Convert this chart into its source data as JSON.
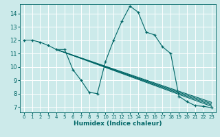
{
  "xlabel": "Humidex (Indice chaleur)",
  "bg_color": "#cceaea",
  "grid_color": "#ffffff",
  "line_color": "#006666",
  "xlim": [
    -0.5,
    23.5
  ],
  "ylim": [
    6.6,
    14.7
  ],
  "yticks": [
    7,
    8,
    9,
    10,
    11,
    12,
    13,
    14
  ],
  "xticks": [
    0,
    1,
    2,
    3,
    4,
    5,
    6,
    7,
    8,
    9,
    10,
    11,
    12,
    13,
    14,
    15,
    16,
    17,
    18,
    19,
    20,
    21,
    22,
    23
  ],
  "main_line_x": [
    0,
    1,
    2,
    3,
    4,
    5,
    6,
    7,
    8,
    9,
    10,
    11,
    12,
    13,
    14,
    15,
    16,
    17,
    18,
    19,
    20,
    21,
    22,
    23
  ],
  "main_line_y": [
    12.0,
    12.0,
    11.85,
    11.6,
    11.3,
    11.3,
    9.8,
    9.0,
    8.1,
    8.0,
    10.4,
    12.0,
    13.4,
    14.55,
    14.1,
    12.6,
    12.4,
    11.5,
    11.0,
    7.8,
    7.4,
    7.1,
    7.05,
    6.95
  ],
  "trend_lines": [
    {
      "x": [
        4,
        23
      ],
      "y": [
        11.3,
        7.05
      ]
    },
    {
      "x": [
        4,
        23
      ],
      "y": [
        11.3,
        7.15
      ]
    },
    {
      "x": [
        4,
        23
      ],
      "y": [
        11.3,
        7.25
      ]
    },
    {
      "x": [
        4,
        23
      ],
      "y": [
        11.3,
        7.35
      ]
    }
  ]
}
